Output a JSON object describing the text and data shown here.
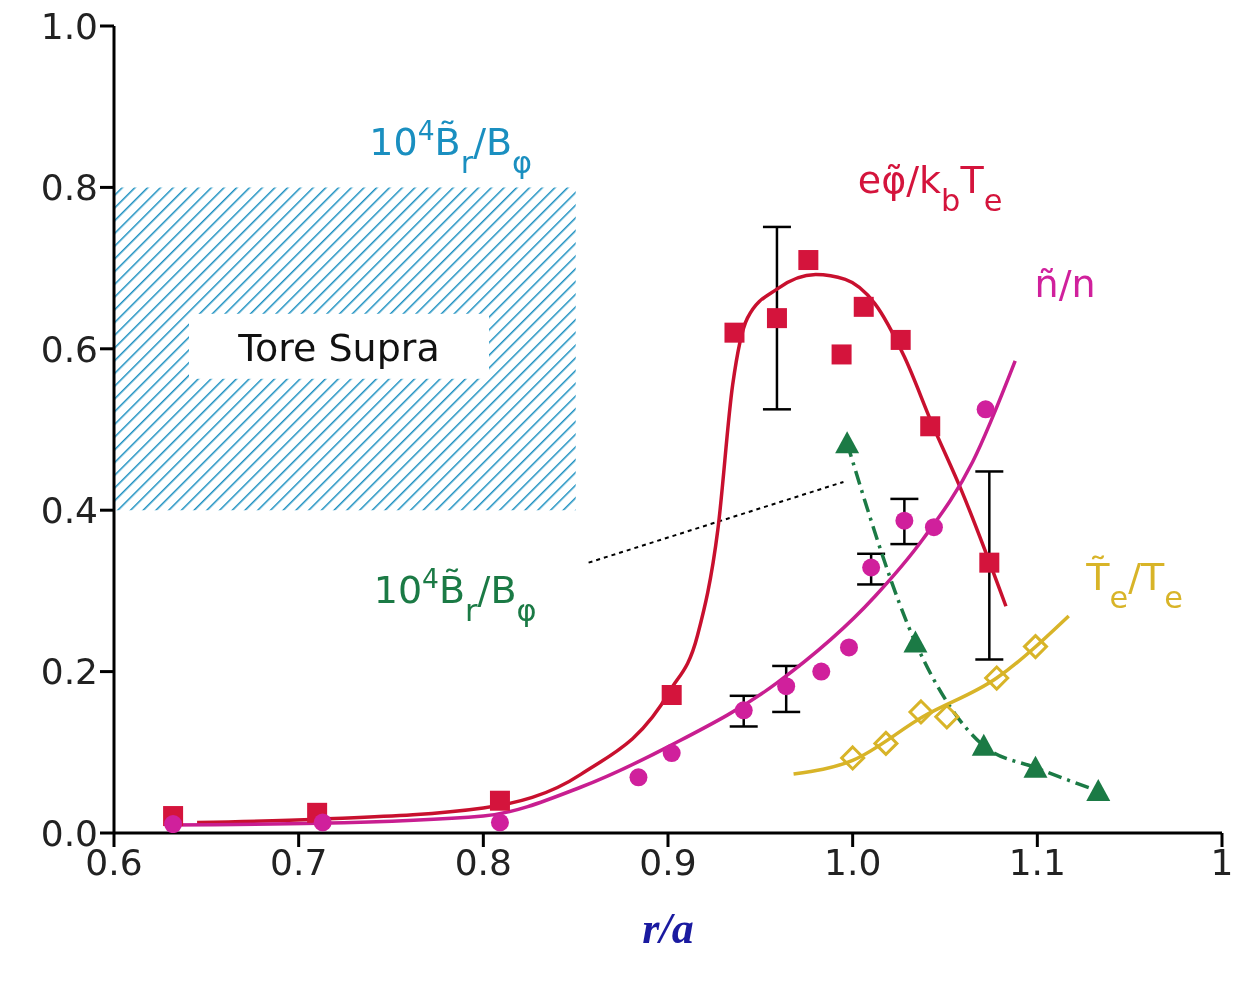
{
  "chart_data": {
    "type": "scatter",
    "xlabel": "r/a",
    "xlim": [
      0.6,
      1.2
    ],
    "xticks": [
      0.6,
      0.7,
      0.8,
      0.9,
      {
        "value": 1.0,
        "label": "1.0"
      },
      1.1,
      {
        "value": 1.2,
        "label": "1"
      }
    ],
    "ylim": [
      0,
      1.0
    ],
    "yticks": [
      {
        "value": 0,
        "label": "0.0"
      },
      0.2,
      0.4,
      0.6,
      0.8,
      {
        "value": 1,
        "label": "1.0"
      }
    ],
    "series": [
      {
        "name": "eφ̃/k$_{b}$T$_{e}$",
        "marker": "square",
        "color": "#d4143c",
        "x": [
          0.632,
          0.71,
          0.809,
          0.902,
          0.936,
          0.959,
          0.976,
          0.994,
          1.006,
          1.026,
          1.042,
          1.074
        ],
        "values": [
          0.021,
          0.025,
          0.04,
          0.171,
          0.62,
          0.638,
          0.71,
          0.593,
          0.652,
          0.611,
          0.504,
          0.335
        ],
        "errors": [
          null,
          null,
          null,
          null,
          null,
          [
            0.525,
            0.751
          ],
          null,
          null,
          null,
          null,
          null,
          [
            0.215,
            0.448
          ]
        ]
      },
      {
        "type": "line",
        "marker": "none",
        "line_style": "solid",
        "color": "#c8102e",
        "x": [
          0.645,
          0.71,
          0.8,
          0.853,
          0.901,
          0.916,
          0.927,
          0.935,
          0.943,
          0.959,
          0.98,
          0.996,
          1.012,
          1.028,
          1.043,
          1.059,
          1.083
        ],
        "values": [
          0.013,
          0.017,
          0.031,
          0.073,
          0.176,
          0.245,
          0.376,
          0.555,
          0.638,
          0.674,
          0.692,
          0.686,
          0.656,
          0.59,
          0.507,
          0.424,
          0.281
        ]
      },
      {
        "name": "ñ/n",
        "marker": "circle",
        "color": "#d0209c",
        "x": [
          0.632,
          0.713,
          0.809,
          0.884,
          0.902,
          0.941,
          0.964,
          0.983,
          0.998,
          1.01,
          1.028,
          1.044,
          1.072
        ],
        "values": [
          0.011,
          0.013,
          0.013,
          0.069,
          0.099,
          0.152,
          0.182,
          0.2,
          0.23,
          0.329,
          0.387,
          0.379,
          0.525
        ],
        "errors": [
          null,
          null,
          null,
          null,
          null,
          [
            0.132,
            0.17
          ],
          [
            0.15,
            0.207
          ],
          null,
          null,
          [
            0.308,
            0.346
          ],
          [
            0.358,
            0.414
          ],
          null,
          null
        ]
      },
      {
        "type": "line",
        "marker": "none",
        "line_style": "solid",
        "color": "#c81e90",
        "x": [
          0.628,
          0.71,
          0.8,
          0.853,
          0.901,
          0.959,
          1.012,
          1.038,
          1.065,
          1.088
        ],
        "values": [
          0.01,
          0.012,
          0.021,
          0.057,
          0.108,
          0.186,
          0.293,
          0.364,
          0.46,
          0.585
        ]
      },
      {
        "name": "10$^{4}$B̃$_{r}$/B$_{φ}$",
        "type": "line",
        "marker": "triangle",
        "line_style": "dashed",
        "color": "#1b7a45",
        "x": [
          0.997,
          1.034,
          1.071,
          1.099,
          1.133
        ],
        "values": [
          0.483,
          0.236,
          0.108,
          0.081,
          0.052
        ]
      },
      {
        "name": "T̃$_{e}$/T$_{e}$",
        "marker": "diamond",
        "color": "#d8b428",
        "x": [
          1.0,
          1.018,
          1.037,
          1.051,
          1.078,
          1.099
        ],
        "values": [
          0.093,
          0.111,
          0.15,
          0.144,
          0.192,
          0.231
        ]
      },
      {
        "type": "line",
        "marker": "none",
        "line_style": "solid",
        "color": "#d8b428",
        "x": [
          0.968,
          1.0,
          1.038,
          1.078,
          1.117
        ],
        "values": [
          0.073,
          0.09,
          0.144,
          0.192,
          0.269
        ]
      }
    ],
    "bands": [
      {
        "axis": "y",
        "from": 0.4,
        "to": 0.8,
        "color": "#1a8fc0",
        "label": "10$^{4}$B̃$_{r}$/B$_{φ}$"
      }
    ],
    "annotations": [
      "Tore Supra"
    ]
  }
}
